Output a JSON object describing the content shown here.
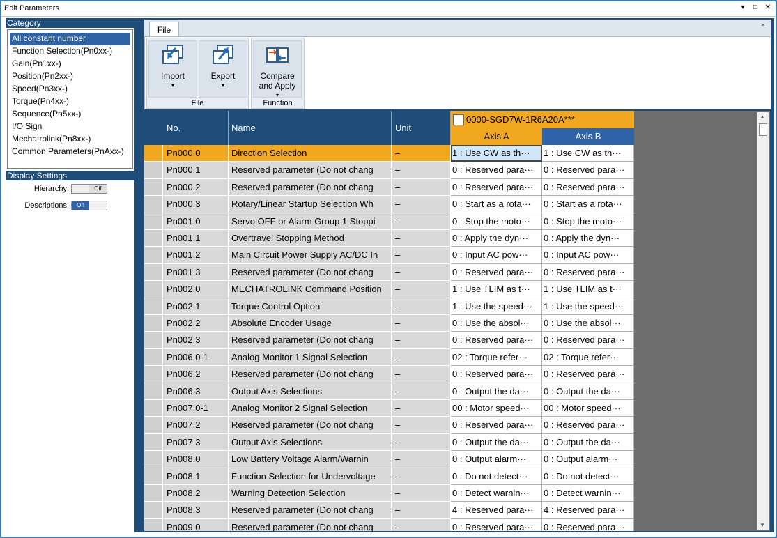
{
  "window": {
    "title": "Edit Parameters",
    "controls": [
      "▾",
      "□",
      "✕"
    ]
  },
  "left": {
    "category_header": "Category",
    "categories": [
      {
        "label": "All constant number",
        "selected": true
      },
      {
        "label": "Function Selection(Pn0xx-)"
      },
      {
        "label": "Gain(Pn1xx-)"
      },
      {
        "label": "Position(Pn2xx-)"
      },
      {
        "label": "Speed(Pn3xx-)"
      },
      {
        "label": "Torque(Pn4xx-)"
      },
      {
        "label": "Sequence(Pn5xx-)"
      },
      {
        "label": "I/O Sign"
      },
      {
        "label": "Mechatrolink(Pn8xx-)"
      },
      {
        "label": "Common Parameters(PnAxx-)"
      }
    ],
    "display_header": "Display Settings",
    "hierarchy_label": "Hierarchy:",
    "hierarchy_state": "Off",
    "descriptions_label": "Descriptions:",
    "descriptions_state": "On"
  },
  "ribbon": {
    "tab": "File",
    "buttons": {
      "import": "Import",
      "export": "Export",
      "compare": "Compare and Apply"
    },
    "groups": {
      "file": "File",
      "function": "Function"
    }
  },
  "grid": {
    "headers": {
      "no": "No.",
      "name": "Name",
      "unit": "Unit",
      "device": "0000-SGD7W-1R6A20A***",
      "axis_a": "Axis A",
      "axis_b": "Axis B"
    },
    "rows": [
      {
        "no": "Pn000.0",
        "name": "Direction Selection",
        "unit": "–",
        "a": "1 : Use CW as th···",
        "b": "1 : Use CW as th···",
        "selected": true
      },
      {
        "no": "Pn000.1",
        "name": "Reserved parameter (Do not chang",
        "unit": "–",
        "a": "0 : Reserved para···",
        "b": "0 : Reserved para···"
      },
      {
        "no": "Pn000.2",
        "name": "Reserved parameter (Do not chang",
        "unit": "–",
        "a": "0 : Reserved para···",
        "b": "0 : Reserved para···"
      },
      {
        "no": "Pn000.3",
        "name": "Rotary/Linear Startup Selection Wh",
        "unit": "–",
        "a": "0 : Start as a rota···",
        "b": "0 : Start as a rota···"
      },
      {
        "no": "Pn001.0",
        "name": "Servo OFF or Alarm Group 1 Stoppi",
        "unit": "–",
        "a": "0 : Stop the moto···",
        "b": "0 : Stop the moto···"
      },
      {
        "no": "Pn001.1",
        "name": "Overtravel Stopping Method",
        "unit": "–",
        "a": "0 : Apply the dyn···",
        "b": "0 : Apply the dyn···"
      },
      {
        "no": "Pn001.2",
        "name": "Main Circuit Power Supply AC/DC In",
        "unit": "–",
        "a": "0 : Input AC pow···",
        "b": "0 : Input AC pow···"
      },
      {
        "no": "Pn001.3",
        "name": "Reserved parameter (Do not chang",
        "unit": "–",
        "a": "0 : Reserved para···",
        "b": "0 : Reserved para···"
      },
      {
        "no": "Pn002.0",
        "name": "MECHATROLINK Command Position",
        "unit": "–",
        "a": "1 : Use TLIM as t···",
        "b": "1 : Use TLIM as t···"
      },
      {
        "no": "Pn002.1",
        "name": "Torque Control Option",
        "unit": "–",
        "a": "1 : Use the speed···",
        "b": "1 : Use the speed···"
      },
      {
        "no": "Pn002.2",
        "name": "Absolute Encoder Usage",
        "unit": "–",
        "a": "0 : Use the absol···",
        "b": "0 : Use the absol···"
      },
      {
        "no": "Pn002.3",
        "name": "Reserved parameter (Do not chang",
        "unit": "–",
        "a": "0 : Reserved para···",
        "b": "0 : Reserved para···"
      },
      {
        "no": "Pn006.0-1",
        "name": "Analog Monitor 1 Signal Selection",
        "unit": "–",
        "a": "02 : Torque refer···",
        "b": "02 : Torque refer···"
      },
      {
        "no": "Pn006.2",
        "name": "Reserved parameter (Do not chang",
        "unit": "–",
        "a": "0 : Reserved para···",
        "b": "0 : Reserved para···"
      },
      {
        "no": "Pn006.3",
        "name": "Output Axis Selections",
        "unit": "–",
        "a": "0 : Output the da···",
        "b": "0 : Output the da···"
      },
      {
        "no": "Pn007.0-1",
        "name": "Analog Monitor 2 Signal Selection",
        "unit": "–",
        "a": "00 : Motor speed···",
        "b": "00 : Motor speed···"
      },
      {
        "no": "Pn007.2",
        "name": "Reserved parameter (Do not chang",
        "unit": "–",
        "a": "0 : Reserved para···",
        "b": "0 : Reserved para···"
      },
      {
        "no": "Pn007.3",
        "name": "Output Axis Selections",
        "unit": "–",
        "a": "0 : Output the da···",
        "b": "0 : Output the da···"
      },
      {
        "no": "Pn008.0",
        "name": "Low Battery Voltage Alarm/Warnin",
        "unit": "–",
        "a": "0 : Output alarm···",
        "b": "0 : Output alarm···"
      },
      {
        "no": "Pn008.1",
        "name": "Function Selection for Undervoltage",
        "unit": "–",
        "a": "0 : Do not detect···",
        "b": "0 : Do not detect···"
      },
      {
        "no": "Pn008.2",
        "name": "Warning Detection Selection",
        "unit": "–",
        "a": "0 : Detect warnin···",
        "b": "0 : Detect warnin···"
      },
      {
        "no": "Pn008.3",
        "name": "Reserved parameter (Do not chang",
        "unit": "–",
        "a": "4 : Reserved para···",
        "b": "4 : Reserved para···"
      },
      {
        "no": "Pn009.0",
        "name": "Reserved parameter (Do not chang",
        "unit": "–",
        "a": "0 : Reserved para···",
        "b": "0 : Reserved para···"
      }
    ]
  }
}
